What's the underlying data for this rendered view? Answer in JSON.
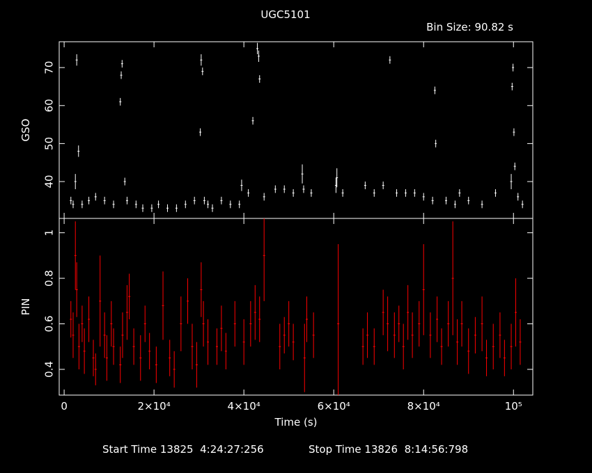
{
  "chart_data": [
    {
      "type": "scatter",
      "title": "UGC5101",
      "subtitle": "Bin Size: 90.82 s",
      "ylabel": "GSO",
      "xlim": [
        -1100,
        104300
      ],
      "xticks": [
        0,
        20000,
        40000,
        60000,
        80000,
        100000
      ],
      "ylim": [
        30.3,
        76.8
      ],
      "yticks": [
        40,
        50,
        60,
        70
      ],
      "series": [
        {
          "name": "GSO",
          "color": "#ffffff",
          "x": [
            1500,
            2000,
            2500,
            2800,
            3200,
            4000,
            5500,
            7000,
            9000,
            11000,
            12500,
            12700,
            12900,
            13500,
            14000,
            16000,
            17500,
            19500,
            21000,
            23000,
            25000,
            27000,
            29000,
            30300,
            30500,
            30800,
            31200,
            32000,
            33000,
            35000,
            37000,
            39000,
            39500,
            41000,
            42000,
            43000,
            43300,
            43500,
            44500,
            47000,
            49000,
            51000,
            53000,
            53300,
            55000,
            60500,
            60700,
            62000,
            67000,
            69000,
            71000,
            72500,
            74000,
            76000,
            78000,
            80000,
            82000,
            82500,
            82700,
            85000,
            87000,
            88000,
            90000,
            93000,
            96000,
            99500,
            99700,
            99900,
            100100,
            100300,
            101000,
            102000
          ],
          "values": [
            35,
            34,
            40,
            72,
            48,
            34,
            35,
            36,
            35,
            34,
            61,
            68,
            71,
            40,
            35,
            34,
            33,
            33,
            34,
            33,
            33,
            34,
            35,
            53,
            72,
            69,
            35,
            34,
            33,
            35,
            34,
            34,
            39,
            37,
            56,
            75,
            73,
            67,
            36,
            38,
            38,
            37,
            42,
            38,
            37,
            39,
            41,
            37,
            39,
            37,
            39,
            72,
            37,
            37,
            37,
            36,
            35,
            64,
            50,
            35,
            34,
            37,
            35,
            34,
            37,
            40,
            65,
            70,
            53,
            44,
            36,
            34
          ],
          "errors": [
            1,
            1,
            2,
            1.5,
            1.5,
            1,
            1,
            1,
            1,
            1,
            1,
            1,
            1,
            1,
            1,
            1,
            1,
            1,
            1,
            1,
            1,
            1,
            1,
            1,
            1.5,
            1,
            1,
            1,
            1,
            1,
            1,
            1,
            1.5,
            1,
            1,
            1.5,
            1.5,
            1,
            1,
            1,
            1,
            1,
            2.5,
            1,
            1,
            2,
            2.5,
            1,
            1,
            1,
            1,
            1,
            1,
            1,
            1,
            1,
            1,
            1,
            1,
            1,
            1,
            1,
            1,
            1,
            1,
            2,
            1,
            1,
            1,
            1,
            1,
            1
          ]
        }
      ]
    },
    {
      "type": "scatter",
      "ylabel": "PIN",
      "xlabel": "Time (s)",
      "xlim": [
        -1100,
        104300
      ],
      "xticks": [
        0,
        {
          "value": 20000,
          "label": "2×10⁴"
        },
        {
          "value": 40000,
          "label": "4×10⁴"
        },
        {
          "value": 60000,
          "label": "6×10⁴"
        },
        {
          "value": 80000,
          "label": "8×10⁴"
        },
        {
          "value": 100000,
          "label": "10⁵"
        }
      ],
      "ylim": [
        0.287,
        1.063
      ],
      "yticks": [
        0.4,
        0.6,
        0.8,
        1
      ],
      "series": [
        {
          "name": "PIN",
          "color": "#ff0000",
          "x": [
            1500,
            2000,
            2500,
            2800,
            3300,
            4000,
            4500,
            5500,
            6500,
            7000,
            8000,
            9000,
            9500,
            10500,
            11000,
            12500,
            13000,
            14000,
            14500,
            15500,
            17000,
            18000,
            19000,
            20500,
            22000,
            23500,
            24500,
            26000,
            27500,
            28500,
            29500,
            30500,
            31000,
            32000,
            34000,
            35000,
            36000,
            38000,
            40000,
            41500,
            42500,
            43500,
            44500,
            48000,
            49000,
            50000,
            51000,
            53500,
            54000,
            55500,
            61000,
            66500,
            67500,
            69000,
            71000,
            72000,
            73500,
            74500,
            75500,
            76500,
            77500,
            79000,
            80000,
            81500,
            83000,
            84000,
            85500,
            86500,
            87500,
            88500,
            90000,
            91500,
            93000,
            94000,
            95500,
            97000,
            98000,
            99500,
            100500,
            101500
          ],
          "values": [
            0.62,
            0.55,
            0.9,
            0.75,
            0.5,
            0.6,
            0.48,
            0.62,
            0.45,
            0.4,
            0.7,
            0.55,
            0.45,
            0.6,
            0.5,
            0.42,
            0.55,
            0.65,
            0.72,
            0.5,
            0.45,
            0.6,
            0.48,
            0.42,
            0.68,
            0.45,
            0.4,
            0.6,
            0.7,
            0.5,
            0.42,
            0.75,
            0.6,
            0.52,
            0.5,
            0.58,
            0.48,
            0.6,
            0.52,
            0.6,
            0.65,
            0.62,
            0.9,
            0.5,
            0.55,
            0.6,
            0.52,
            0.45,
            0.62,
            0.55,
            0.6,
            0.5,
            0.55,
            0.5,
            0.65,
            0.6,
            0.55,
            0.6,
            0.5,
            0.65,
            0.55,
            0.6,
            0.75,
            0.55,
            0.62,
            0.5,
            0.6,
            0.8,
            0.52,
            0.6,
            0.48,
            0.55,
            0.6,
            0.45,
            0.5,
            0.55,
            0.45,
            0.5,
            0.65,
            0.52
          ],
          "errors": [
            0.08,
            0.1,
            0.15,
            0.12,
            0.1,
            0.08,
            0.1,
            0.1,
            0.08,
            0.07,
            0.2,
            0.1,
            0.1,
            0.1,
            0.08,
            0.08,
            0.1,
            0.12,
            0.1,
            0.08,
            0.1,
            0.08,
            0.08,
            0.08,
            0.15,
            0.08,
            0.08,
            0.12,
            0.1,
            0.1,
            0.1,
            0.12,
            0.1,
            0.1,
            0.08,
            0.1,
            0.08,
            0.1,
            0.1,
            0.1,
            0.12,
            0.1,
            0.2,
            0.1,
            0.08,
            0.1,
            0.08,
            0.15,
            0.1,
            0.1,
            0.35,
            0.08,
            0.1,
            0.08,
            0.1,
            0.12,
            0.1,
            0.08,
            0.1,
            0.12,
            0.1,
            0.1,
            0.2,
            0.1,
            0.1,
            0.08,
            0.1,
            0.25,
            0.1,
            0.1,
            0.1,
            0.08,
            0.12,
            0.08,
            0.1,
            0.1,
            0.08,
            0.1,
            0.15,
            0.1
          ]
        }
      ]
    }
  ],
  "footer": {
    "start": "Start Time 13825  4:24:27:256",
    "stop": "Stop Time 13826  8:14:56:798"
  }
}
